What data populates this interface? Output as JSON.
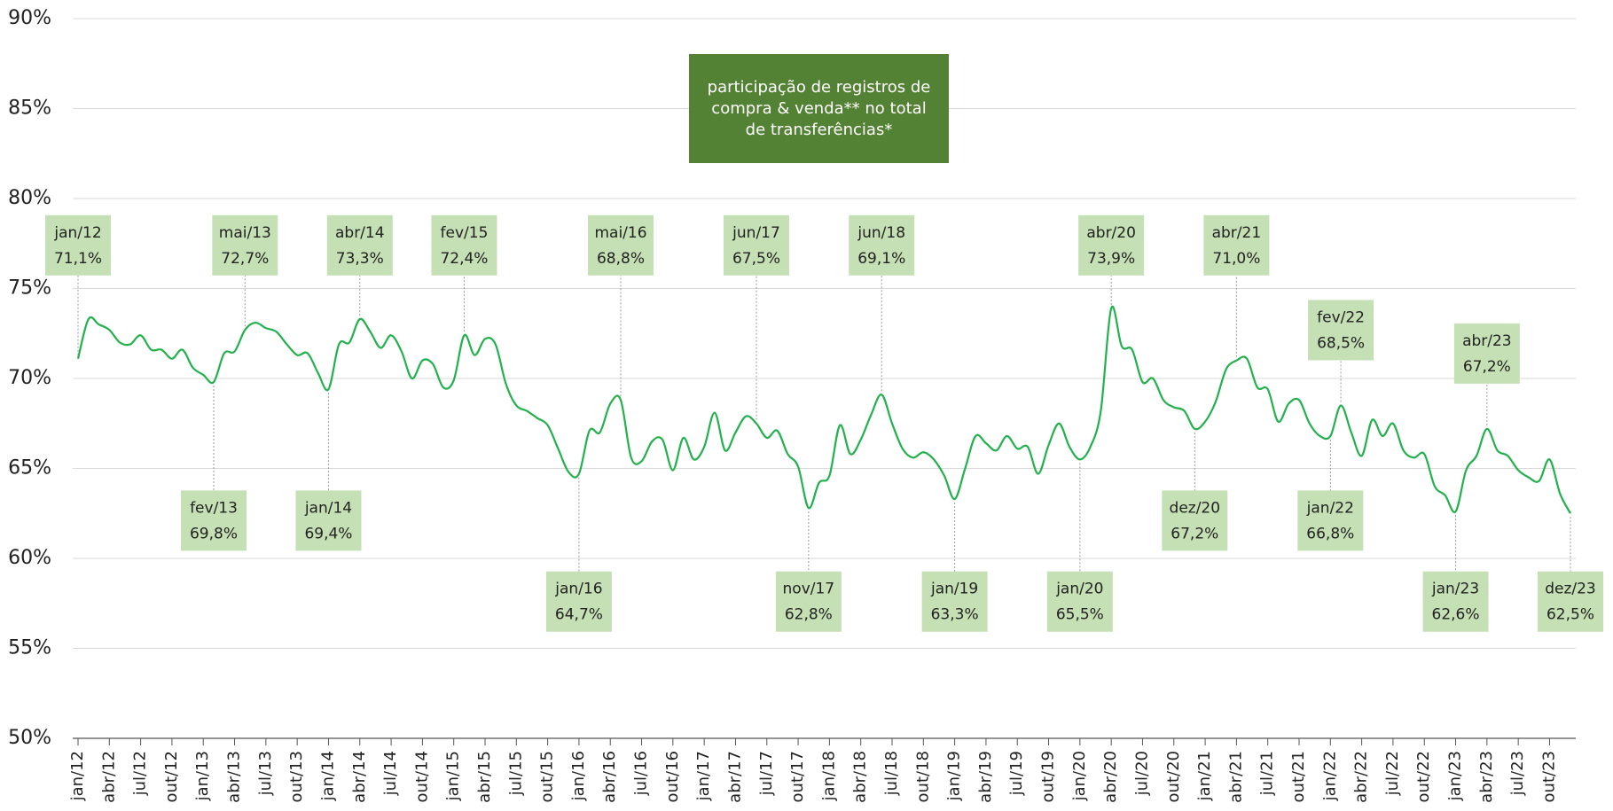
{
  "chart_data": {
    "type": "line",
    "title": "participação de registros de compra & venda** no total de transferências*",
    "categories": [
      "jan/12",
      null,
      null,
      "abr/12",
      null,
      null,
      "jul/12",
      null,
      null,
      "out/12",
      null,
      null,
      "jan/13",
      null,
      null,
      "abr/13",
      null,
      null,
      "jul/13",
      null,
      null,
      "out/13",
      null,
      null,
      "jan/14",
      null,
      null,
      "abr/14",
      null,
      null,
      "jul/14",
      null,
      null,
      "out/14",
      null,
      null,
      "jan/15",
      null,
      null,
      "abr/15",
      null,
      null,
      "jul/15",
      null,
      null,
      "out/15",
      null,
      null,
      "jan/16",
      null,
      null,
      "abr/16",
      null,
      null,
      "jul/16",
      null,
      null,
      "out/16",
      null,
      null,
      "jan/17",
      null,
      null,
      "abr/17",
      null,
      null,
      "jul/17",
      null,
      null,
      "out/17",
      null,
      null,
      "jan/18",
      null,
      null,
      "abr/18",
      null,
      null,
      "jul/18",
      null,
      null,
      "out/18",
      null,
      null,
      "jan/19",
      null,
      null,
      "abr/19",
      null,
      null,
      "jul/19",
      null,
      null,
      "out/19",
      null,
      null,
      "jan/20",
      null,
      null,
      "abr/20",
      null,
      null,
      "jul/20",
      null,
      null,
      "out/20",
      null,
      null,
      "jan/21",
      null,
      null,
      "abr/21",
      null,
      null,
      "jul/21",
      null,
      null,
      "out/21",
      null,
      null,
      "jan/22",
      null,
      null,
      "abr/22",
      null,
      null,
      "jul/22",
      null,
      null,
      "out/22",
      null,
      null,
      "jan/23",
      null,
      null,
      "abr/23",
      null,
      null,
      "jul/23",
      null,
      null,
      "out/23",
      null,
      null
    ],
    "series": [
      {
        "color": "#22b14c",
        "values": [
          71.1,
          73.3,
          73.0,
          72.7,
          72.0,
          71.9,
          72.4,
          71.6,
          71.6,
          71.1,
          71.6,
          70.6,
          70.2,
          69.8,
          71.4,
          71.5,
          72.7,
          73.1,
          72.8,
          72.6,
          71.9,
          71.3,
          71.4,
          70.3,
          69.4,
          71.9,
          72.0,
          73.3,
          72.6,
          71.7,
          72.4,
          71.5,
          70.0,
          71.0,
          70.8,
          69.5,
          69.9,
          72.4,
          71.3,
          72.2,
          71.9,
          69.7,
          68.5,
          68.2,
          67.8,
          67.4,
          66.1,
          64.8,
          64.7,
          67.1,
          67.0,
          68.6,
          68.8,
          65.6,
          65.4,
          66.5,
          66.6,
          64.9,
          66.7,
          65.5,
          66.2,
          68.1,
          66.0,
          67.0,
          67.9,
          67.5,
          66.7,
          67.1,
          65.8,
          65.1,
          62.8,
          64.2,
          64.6,
          67.4,
          65.8,
          66.6,
          68.0,
          69.1,
          67.5,
          66.1,
          65.6,
          65.9,
          65.5,
          64.6,
          63.3,
          65.0,
          66.8,
          66.4,
          66.0,
          66.8,
          66.1,
          66.2,
          64.7,
          66.3,
          67.5,
          66.2,
          65.5,
          66.2,
          68.2,
          73.9,
          71.8,
          71.6,
          69.8,
          70.0,
          68.8,
          68.4,
          68.2,
          67.2,
          67.6,
          68.7,
          70.5,
          71.0,
          71.1,
          69.5,
          69.4,
          67.6,
          68.6,
          68.8,
          67.5,
          66.8,
          66.8,
          68.5,
          67.0,
          65.7,
          67.7,
          66.8,
          67.5,
          66.0,
          65.6,
          65.8,
          64.0,
          63.5,
          62.6,
          64.9,
          65.7,
          67.2,
          66.0,
          65.7,
          64.9,
          64.5,
          64.3,
          65.5,
          63.6,
          62.5
        ],
        "point_labels": [
          "jan/12",
          null,
          null,
          null,
          null,
          null,
          null,
          null,
          null,
          null,
          null,
          null,
          null,
          "fev/13",
          null,
          null,
          "mai/13",
          null,
          null,
          null,
          null,
          null,
          null,
          null,
          "jan/14",
          null,
          null,
          "abr/14",
          null,
          null,
          null,
          null,
          null,
          null,
          null,
          null,
          null,
          "fev/15",
          null,
          null,
          null,
          null,
          null,
          null,
          null,
          null,
          null,
          null,
          "jan/16",
          null,
          null,
          null,
          "mai/16",
          null,
          null,
          null,
          null,
          null,
          null,
          null,
          null,
          null,
          null,
          null,
          null,
          "jun/17",
          null,
          null,
          null,
          null,
          "nov/17",
          null,
          null,
          null,
          null,
          null,
          null,
          "jun/18",
          null,
          null,
          null,
          null,
          null,
          null,
          "jan/19",
          null,
          null,
          null,
          null,
          null,
          null,
          null,
          null,
          null,
          null,
          null,
          "jan/20",
          null,
          null,
          "abr/20",
          null,
          null,
          null,
          null,
          null,
          null,
          null,
          "dez/20",
          null,
          null,
          null,
          "abr/21",
          null,
          null,
          null,
          null,
          null,
          null,
          null,
          null,
          "jan/22",
          "fev/22",
          null,
          null,
          null,
          null,
          null,
          null,
          null,
          null,
          null,
          null,
          "jan/23",
          null,
          null,
          "abr/23",
          null,
          null,
          null,
          null,
          null,
          null,
          null,
          "dez/23"
        ],
        "value_labels": [
          "71,1%",
          null,
          null,
          null,
          null,
          null,
          null,
          null,
          null,
          null,
          null,
          null,
          null,
          "69,8%",
          null,
          null,
          "72,7%",
          null,
          null,
          null,
          null,
          null,
          null,
          null,
          "69,4%",
          null,
          null,
          "73,3%",
          null,
          null,
          null,
          null,
          null,
          null,
          null,
          null,
          null,
          "72,4%",
          null,
          null,
          null,
          null,
          null,
          null,
          null,
          null,
          null,
          null,
          "64,7%",
          null,
          null,
          null,
          "68,8%",
          null,
          null,
          null,
          null,
          null,
          null,
          null,
          null,
          null,
          null,
          null,
          null,
          "67,5%",
          null,
          null,
          null,
          null,
          "62,8%",
          null,
          null,
          null,
          null,
          null,
          null,
          "69,1%",
          null,
          null,
          null,
          null,
          null,
          null,
          "63,3%",
          null,
          null,
          null,
          null,
          null,
          null,
          null,
          null,
          null,
          null,
          null,
          "65,5%",
          null,
          null,
          "73,9%",
          null,
          null,
          null,
          null,
          null,
          null,
          null,
          "67,2%",
          null,
          null,
          null,
          "71,0%",
          null,
          null,
          null,
          null,
          null,
          null,
          null,
          null,
          "66,8%",
          "68,5%",
          null,
          null,
          null,
          null,
          null,
          null,
          null,
          null,
          null,
          null,
          "62,6%",
          null,
          null,
          "67,2%",
          null,
          null,
          null,
          null,
          null,
          null,
          null,
          "62,5%"
        ]
      }
    ],
    "ylim": [
      50,
      90
    ],
    "yticks": [
      {
        "value": 50,
        "label": "50%"
      },
      {
        "value": 55,
        "label": "55%"
      },
      {
        "value": 60,
        "label": "60%"
      },
      {
        "value": 65,
        "label": "65%"
      },
      {
        "value": 70,
        "label": "70%"
      },
      {
        "value": 75,
        "label": "75%"
      },
      {
        "value": 80,
        "label": "80%"
      },
      {
        "value": 85,
        "label": "85%"
      },
      {
        "value": 90,
        "label": "90%"
      }
    ],
    "grid": true
  }
}
